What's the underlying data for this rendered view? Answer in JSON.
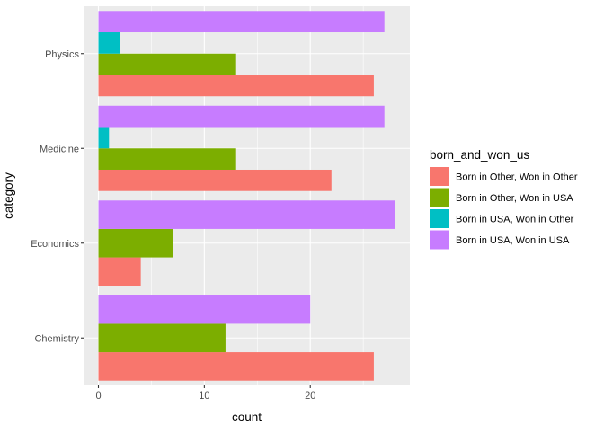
{
  "chart_data": {
    "type": "bar",
    "orientation": "horizontal",
    "position": "dodge",
    "xlabel": "count",
    "ylabel": "category",
    "categories": [
      "Chemistry",
      "Economics",
      "Medicine",
      "Physics"
    ],
    "xlim": [
      -1.4,
      29.4
    ],
    "xticks": [
      0,
      10,
      20
    ],
    "grid": true,
    "legend": {
      "title": "born_and_won_us",
      "placement": "right"
    },
    "series": [
      {
        "name": "Born in Other, Won in Other",
        "color": "#F8766D",
        "values": [
          26,
          4,
          22,
          26
        ]
      },
      {
        "name": "Born in Other, Won in USA",
        "color": "#7CAE00",
        "values": [
          12,
          7,
          13,
          13
        ]
      },
      {
        "name": "Born in USA, Won in Other",
        "color": "#00BFC4",
        "values": [
          null,
          null,
          1,
          2
        ]
      },
      {
        "name": "Born in USA, Won in USA",
        "color": "#C77CFF",
        "values": [
          20,
          28,
          27,
          27
        ]
      }
    ]
  }
}
